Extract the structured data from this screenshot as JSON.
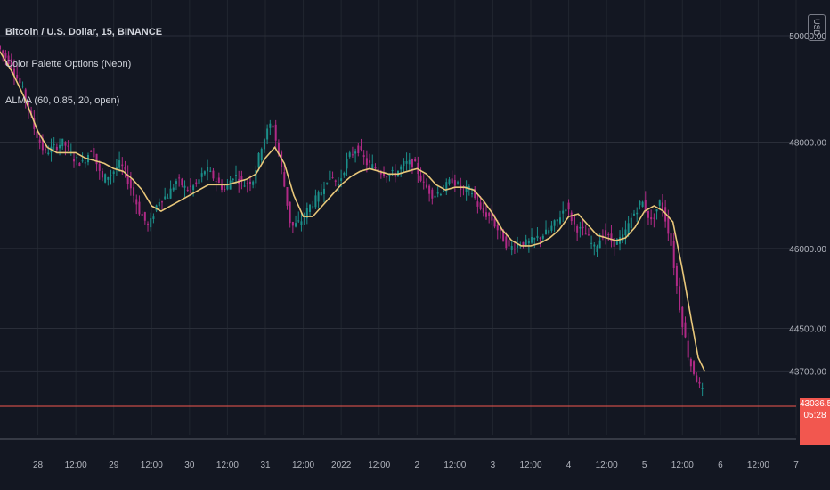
{
  "legend": {
    "symbol": "Bitcoin / U.S. Dollar, 15, BINANCE",
    "indicator_1": "Color Palette Options (Neon)",
    "indicator_2": "ALMA (60, 0.85, 20, open)"
  },
  "currency_button": "USD",
  "current_price": {
    "label": "43036.54",
    "countdown": "05:28",
    "value": 43036.54
  },
  "colors": {
    "background": "#131722",
    "grid": "#2a2e39",
    "up_candle": "#1b8f8a",
    "down_candle": "#b02a86",
    "alma_line": "#e8c77a",
    "price_line": "#f2574f"
  },
  "chart_data": {
    "type": "line",
    "title": "",
    "xlabel": "",
    "ylabel": "",
    "ylim": [
      42500,
      50000
    ],
    "y_ticks": [
      {
        "value": 50000,
        "label": "50000.00"
      },
      {
        "value": 48000,
        "label": "48000.00"
      },
      {
        "value": 46000,
        "label": "46000.00"
      },
      {
        "value": 44500,
        "label": "44500.00"
      },
      {
        "value": 43700,
        "label": "43700.00"
      }
    ],
    "x_range_hours": [
      -12,
      240
    ],
    "x_ticks": [
      {
        "label": "28",
        "h": 0
      },
      {
        "label": "12:00",
        "h": 12
      },
      {
        "label": "29",
        "h": 24
      },
      {
        "label": "12:00",
        "h": 36
      },
      {
        "label": "30",
        "h": 48
      },
      {
        "label": "12:00",
        "h": 60
      },
      {
        "label": "31",
        "h": 72
      },
      {
        "label": "12:00",
        "h": 84
      },
      {
        "label": "2022",
        "h": 96
      },
      {
        "label": "12:00",
        "h": 108
      },
      {
        "label": "2",
        "h": 120
      },
      {
        "label": "12:00",
        "h": 132
      },
      {
        "label": "3",
        "h": 144
      },
      {
        "label": "12:00",
        "h": 156
      },
      {
        "label": "4",
        "h": 168
      },
      {
        "label": "12:00",
        "h": 180
      },
      {
        "label": "5",
        "h": 192
      },
      {
        "label": "12:00",
        "h": 204
      },
      {
        "label": "6",
        "h": 216
      },
      {
        "label": "12:00",
        "h": 228
      },
      {
        "label": "7",
        "h": 240
      }
    ],
    "series": [
      {
        "label": "price",
        "color": "#9c4a9a",
        "x": [
          -12,
          -8,
          -4,
          0,
          3,
          6,
          9,
          12,
          15,
          18,
          21,
          24,
          27,
          30,
          33,
          36,
          39,
          42,
          45,
          48,
          51,
          54,
          57,
          60,
          63,
          66,
          69,
          72,
          75,
          78,
          81,
          84,
          87,
          90,
          93,
          96,
          99,
          102,
          105,
          108,
          111,
          114,
          117,
          120,
          123,
          126,
          129,
          132,
          135,
          138,
          141,
          144,
          147,
          150,
          153,
          156,
          159,
          162,
          165,
          168,
          171,
          174,
          177,
          180,
          183,
          186,
          189,
          192,
          195,
          198,
          201,
          204,
          207,
          209,
          211
        ],
        "y": [
          49800,
          49500,
          49000,
          48200,
          47800,
          47900,
          48000,
          47700,
          47600,
          47900,
          47300,
          47400,
          47600,
          47200,
          46700,
          46400,
          46900,
          47000,
          47300,
          47100,
          47200,
          47500,
          47300,
          47100,
          47400,
          47200,
          47300,
          48000,
          48400,
          47500,
          46400,
          46500,
          46800,
          47000,
          47400,
          47200,
          47700,
          47900,
          47600,
          47500,
          47400,
          47400,
          47600,
          47600,
          47200,
          47000,
          47100,
          47300,
          47100,
          47100,
          46700,
          46600,
          46300,
          46000,
          46100,
          46100,
          46200,
          46300,
          46500,
          46800,
          46400,
          46300,
          46000,
          46300,
          46100,
          46200,
          46600,
          46900,
          46500,
          46900,
          46200,
          44900,
          43900,
          43600,
          43300
        ]
      },
      {
        "label": "ALMA",
        "color": "#e8c77a",
        "x": [
          -12,
          -8,
          -4,
          0,
          3,
          6,
          9,
          12,
          15,
          18,
          21,
          24,
          27,
          30,
          33,
          36,
          39,
          42,
          45,
          48,
          51,
          54,
          57,
          60,
          63,
          66,
          69,
          72,
          75,
          78,
          81,
          84,
          87,
          90,
          93,
          96,
          99,
          102,
          105,
          108,
          111,
          114,
          117,
          120,
          123,
          126,
          129,
          132,
          135,
          138,
          141,
          144,
          147,
          150,
          153,
          156,
          159,
          162,
          165,
          168,
          171,
          174,
          177,
          180,
          183,
          186,
          189,
          192,
          195,
          198,
          201,
          204,
          207,
          209,
          211
        ],
        "y": [
          49700,
          49300,
          48800,
          48200,
          47900,
          47800,
          47800,
          47800,
          47700,
          47650,
          47600,
          47500,
          47450,
          47300,
          47100,
          46800,
          46700,
          46800,
          46900,
          47000,
          47100,
          47200,
          47200,
          47200,
          47250,
          47300,
          47400,
          47700,
          47900,
          47600,
          47000,
          46600,
          46600,
          46800,
          47000,
          47200,
          47350,
          47450,
          47500,
          47450,
          47400,
          47400,
          47450,
          47500,
          47400,
          47200,
          47100,
          47150,
          47150,
          47100,
          46900,
          46650,
          46350,
          46150,
          46050,
          46050,
          46100,
          46200,
          46350,
          46600,
          46650,
          46450,
          46250,
          46200,
          46150,
          46200,
          46400,
          46700,
          46800,
          46700,
          46500,
          45600,
          44600,
          43950,
          43700
        ]
      }
    ],
    "current_price_line": 43036.54,
    "legend_position": "top-left",
    "grid": true
  }
}
